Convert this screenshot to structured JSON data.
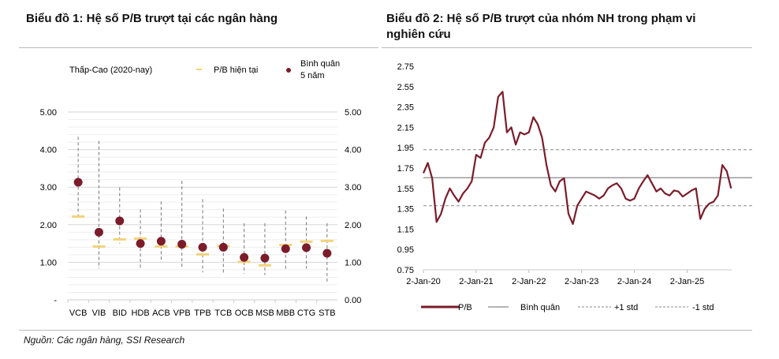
{
  "source": "Nguồn: Các ngân hàng, SSI Research",
  "colors": {
    "dot": "#7b1c2a",
    "current": "#f2d27a",
    "range": "#777777",
    "pb_line": "#7b1c2a",
    "mean": "#888888",
    "std": "#888888"
  },
  "chart_data": [
    {
      "type": "scatter",
      "title": "Biểu đồ 1: Hệ số P/B trượt tại các ngân hàng",
      "legend": {
        "range": "Thấp-Cao (2020-nay)",
        "current": "P/B hiện tại",
        "avg_line1": "Bình quân",
        "avg_line2": "5 năm"
      },
      "legend_placement": "top",
      "ylim": [
        0,
        5
      ],
      "yticks_left": [
        "-",
        "1.00",
        "2.00",
        "3.00",
        "4.00",
        "5.00"
      ],
      "yticks_right": [
        "0.00",
        "1.00",
        "2.00",
        "3.00",
        "4.00",
        "5.00"
      ],
      "categories": [
        "VCB",
        "VIB",
        "BID",
        "HDB",
        "ACB",
        "VPB",
        "TPB",
        "TCB",
        "OCB",
        "MSB",
        "MBB",
        "CTG",
        "STB"
      ],
      "avg_5y": [
        3.13,
        1.8,
        2.1,
        1.5,
        1.56,
        1.48,
        1.4,
        1.4,
        1.13,
        1.11,
        1.36,
        1.39,
        1.24
      ],
      "current": [
        2.22,
        1.42,
        1.61,
        1.63,
        1.42,
        1.42,
        1.21,
        1.43,
        1.01,
        0.92,
        1.46,
        1.55,
        1.57
      ],
      "high": [
        4.34,
        4.23,
        2.99,
        2.41,
        2.62,
        3.17,
        2.68,
        2.43,
        2.04,
        2.04,
        2.38,
        2.22,
        2.04
      ],
      "low": [
        2.22,
        0.83,
        1.5,
        0.85,
        1.03,
        0.84,
        0.73,
        0.69,
        0.7,
        0.66,
        0.78,
        0.83,
        0.45
      ],
      "grid": true
    },
    {
      "type": "line",
      "title_line1": "Biểu đồ 2: Hệ số P/B trượt của nhóm NH trong phạm vi",
      "title_line2": "nghiên cứu",
      "ylim": [
        0.75,
        2.75
      ],
      "yticks": [
        "0.75",
        "0.95",
        "1.15",
        "1.35",
        "1.55",
        "1.75",
        "1.95",
        "2.15",
        "2.35",
        "2.55",
        "2.75"
      ],
      "xticks": [
        "2-Jan-20",
        "2-Jan-21",
        "2-Jan-22",
        "2-Jan-23",
        "2-Jan-24",
        "2-Jan-25"
      ],
      "x_start": "2020-01",
      "legend": {
        "pb": "P/B",
        "mean": "Bình quân",
        "plus": "+1 std",
        "minus": "-1 std"
      },
      "legend_placement": "bottom",
      "mean": 1.655,
      "plus_1std": 1.93,
      "minus_1std": 1.38,
      "pb_monthly": [
        1.7,
        1.8,
        1.65,
        1.22,
        1.3,
        1.45,
        1.55,
        1.48,
        1.42,
        1.5,
        1.55,
        1.62,
        1.88,
        1.85,
        2.0,
        2.05,
        2.15,
        2.45,
        2.5,
        2.1,
        2.15,
        1.98,
        2.1,
        2.08,
        2.1,
        2.25,
        2.18,
        2.05,
        1.78,
        1.58,
        1.52,
        1.62,
        1.65,
        1.3,
        1.2,
        1.38,
        1.45,
        1.52,
        1.5,
        1.48,
        1.45,
        1.48,
        1.55,
        1.58,
        1.6,
        1.55,
        1.45,
        1.43,
        1.45,
        1.55,
        1.62,
        1.68,
        1.6,
        1.52,
        1.55,
        1.5,
        1.48,
        1.53,
        1.52,
        1.47,
        1.5,
        1.53,
        1.55,
        1.25,
        1.35,
        1.4,
        1.42,
        1.48,
        1.78,
        1.72,
        1.55
      ],
      "grid": false
    }
  ]
}
